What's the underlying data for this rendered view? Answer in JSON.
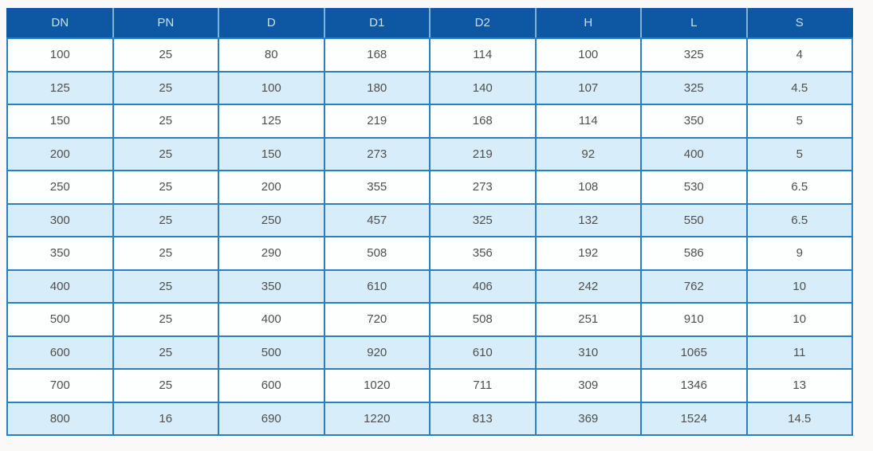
{
  "page": {
    "background": "#faf9f7"
  },
  "table": {
    "columns": [
      "DN",
      "PN",
      "D",
      "D1",
      "D2",
      "H",
      "L",
      "S"
    ],
    "rows": [
      [
        "100",
        "25",
        "80",
        "168",
        "114",
        "100",
        "325",
        "4"
      ],
      [
        "125",
        "25",
        "100",
        "180",
        "140",
        "107",
        "325",
        "4.5"
      ],
      [
        "150",
        "25",
        "125",
        "219",
        "168",
        "114",
        "350",
        "5"
      ],
      [
        "200",
        "25",
        "150",
        "273",
        "219",
        "92",
        "400",
        "5"
      ],
      [
        "250",
        "25",
        "200",
        "355",
        "273",
        "108",
        "530",
        "6.5"
      ],
      [
        "300",
        "25",
        "250",
        "457",
        "325",
        "132",
        "550",
        "6.5"
      ],
      [
        "350",
        "25",
        "290",
        "508",
        "356",
        "192",
        "586",
        "9"
      ],
      [
        "400",
        "25",
        "350",
        "610",
        "406",
        "242",
        "762",
        "10"
      ],
      [
        "500",
        "25",
        "400",
        "720",
        "508",
        "251",
        "910",
        "10"
      ],
      [
        "600",
        "25",
        "500",
        "920",
        "610",
        "310",
        "1065",
        "11"
      ],
      [
        "700",
        "25",
        "600",
        "1020",
        "711",
        "309",
        "1346",
        "13"
      ],
      [
        "800",
        "16",
        "690",
        "1220",
        "813",
        "369",
        "1524",
        "14.5"
      ]
    ],
    "colors": {
      "header_bg": "#0d57a3",
      "header_text": "#c6e2f3",
      "header_divider": "#7fb2d9",
      "border": "#2a7fc0",
      "row_bg": "#fdfefe",
      "row_alt_bg": "#d7edf9",
      "cell_text": "#4f4f4f",
      "page_bg": "#faf9f7"
    }
  },
  "chart_data": {
    "type": "table",
    "title": "",
    "columns": [
      "DN",
      "PN",
      "D",
      "D1",
      "D2",
      "H",
      "L",
      "S"
    ],
    "rows": [
      [
        100,
        25,
        80,
        168,
        114,
        100,
        325,
        4
      ],
      [
        125,
        25,
        100,
        180,
        140,
        107,
        325,
        4.5
      ],
      [
        150,
        25,
        125,
        219,
        168,
        114,
        350,
        5
      ],
      [
        200,
        25,
        150,
        273,
        219,
        92,
        400,
        5
      ],
      [
        250,
        25,
        200,
        355,
        273,
        108,
        530,
        6.5
      ],
      [
        300,
        25,
        250,
        457,
        325,
        132,
        550,
        6.5
      ],
      [
        350,
        25,
        290,
        508,
        356,
        192,
        586,
        9
      ],
      [
        400,
        25,
        350,
        610,
        406,
        242,
        762,
        10
      ],
      [
        500,
        25,
        400,
        720,
        508,
        251,
        910,
        10
      ],
      [
        600,
        25,
        500,
        920,
        610,
        310,
        1065,
        11
      ],
      [
        700,
        25,
        600,
        1020,
        711,
        309,
        1346,
        13
      ],
      [
        800,
        16,
        690,
        1220,
        813,
        369,
        1524,
        14.5
      ]
    ],
    "layout_hints": {
      "header_fill": "#0d57a3",
      "zebra_striping": true,
      "stripe_fill": "#d7edf9",
      "grid": true
    }
  }
}
